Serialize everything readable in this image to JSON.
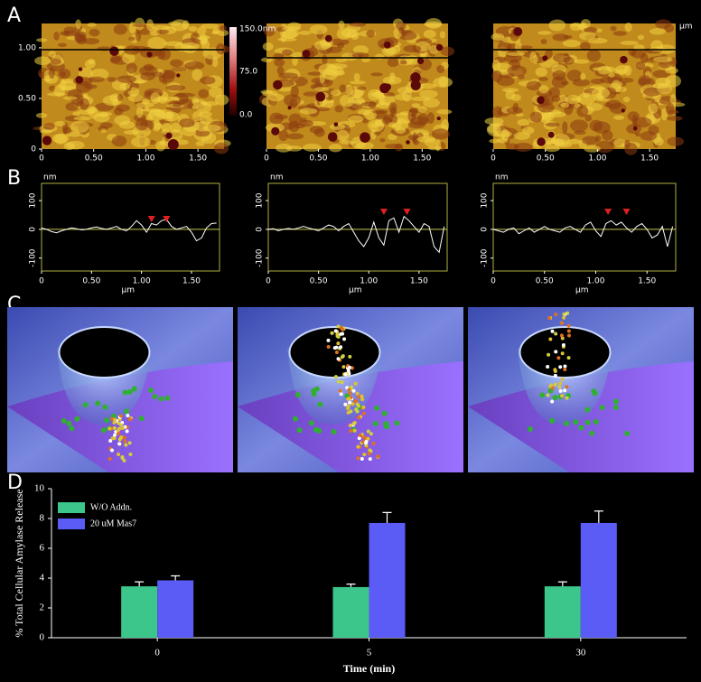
{
  "panel_labels": [
    "A",
    "B",
    "C",
    "D"
  ],
  "afm": {
    "xticks": [
      0,
      {
        "value": 0.5,
        "label": "0.50"
      },
      {
        "value": 1,
        "label": "1.00"
      },
      {
        "value": 1.5,
        "label": "1.50"
      }
    ],
    "yticks": [
      0,
      {
        "value": 0.5,
        "label": "0.50"
      },
      {
        "value": 1,
        "label": "1.00"
      }
    ],
    "xlim": [
      0,
      1.75
    ],
    "ylim": [
      0,
      1.24
    ],
    "colorbar_labels": [
      "150.0nm",
      "75.0",
      "0.0"
    ],
    "unit": "µm"
  },
  "chart_data": [
    {
      "type": "line",
      "color": "#ffffff",
      "zero_line_color": "#c8c850",
      "xlabel": "µm",
      "ylabel": "nm",
      "xlim": [
        0,
        1.78
      ],
      "ylim": [
        -145,
        160
      ],
      "xticks": [
        0,
        {
          "value": 0.5,
          "label": "0.50"
        },
        {
          "value": 1,
          "label": "1.00"
        },
        {
          "value": 1.5,
          "label": "1.50"
        }
      ],
      "yticks": [
        100,
        0,
        -100
      ],
      "x": [
        0,
        0.05,
        0.1,
        0.15,
        0.2,
        0.25,
        0.3,
        0.35,
        0.4,
        0.45,
        0.5,
        0.55,
        0.6,
        0.65,
        0.7,
        0.75,
        0.8,
        0.85,
        0.9,
        0.95,
        1,
        1.05,
        1.1,
        1.15,
        1.2,
        1.25,
        1.3,
        1.35,
        1.4,
        1.45,
        1.5,
        1.55,
        1.6,
        1.65,
        1.7,
        1.75
      ],
      "values": [
        5,
        0,
        -8,
        -12,
        -5,
        0,
        5,
        2,
        -2,
        0,
        5,
        8,
        3,
        0,
        5,
        10,
        0,
        -5,
        10,
        30,
        15,
        -10,
        20,
        15,
        30,
        35,
        10,
        0,
        5,
        10,
        -10,
        -40,
        -30,
        5,
        20,
        22
      ]
    },
    {
      "type": "line",
      "color": "#ffffff",
      "zero_line_color": "#c8c850",
      "xlabel": "µm",
      "ylabel": "nm",
      "xlim": [
        0,
        1.78
      ],
      "ylim": [
        -145,
        160
      ],
      "xticks": [
        0,
        {
          "value": 0.5,
          "label": "0.50"
        },
        {
          "value": 1,
          "label": "1.00"
        },
        {
          "value": 1.5,
          "label": "1.50"
        }
      ],
      "yticks": [
        100,
        0,
        -100
      ],
      "x": [
        0,
        0.05,
        0.1,
        0.15,
        0.2,
        0.25,
        0.3,
        0.35,
        0.4,
        0.45,
        0.5,
        0.55,
        0.6,
        0.65,
        0.7,
        0.75,
        0.8,
        0.85,
        0.9,
        0.95,
        1,
        1.05,
        1.1,
        1.15,
        1.2,
        1.25,
        1.3,
        1.35,
        1.4,
        1.45,
        1.5,
        1.55,
        1.6,
        1.65,
        1.7,
        1.75
      ],
      "values": [
        0,
        2,
        -5,
        0,
        3,
        0,
        5,
        10,
        5,
        0,
        -5,
        5,
        15,
        10,
        -5,
        10,
        20,
        -10,
        -40,
        -60,
        -30,
        25,
        -30,
        -55,
        30,
        40,
        -10,
        45,
        30,
        10,
        -10,
        20,
        10,
        -60,
        -80,
        10
      ]
    },
    {
      "type": "line",
      "color": "#ffffff",
      "zero_line_color": "#c8c850",
      "xlabel": "µm",
      "ylabel": "nm",
      "xlim": [
        0,
        1.78
      ],
      "ylim": [
        -145,
        160
      ],
      "xticks": [
        0,
        {
          "value": 0.5,
          "label": "0.50"
        },
        {
          "value": 1,
          "label": "1.00"
        },
        {
          "value": 1.5,
          "label": "1.50"
        }
      ],
      "yticks": [
        100,
        0,
        -100
      ],
      "x": [
        0,
        0.05,
        0.1,
        0.15,
        0.2,
        0.25,
        0.3,
        0.35,
        0.4,
        0.45,
        0.5,
        0.55,
        0.6,
        0.65,
        0.7,
        0.75,
        0.8,
        0.85,
        0.9,
        0.95,
        1,
        1.05,
        1.1,
        1.15,
        1.2,
        1.25,
        1.3,
        1.35,
        1.4,
        1.45,
        1.5,
        1.55,
        1.6,
        1.65,
        1.7,
        1.75
      ],
      "values": [
        0,
        -5,
        -10,
        0,
        5,
        -15,
        -5,
        5,
        -10,
        0,
        10,
        0,
        -5,
        -10,
        5,
        10,
        0,
        -10,
        15,
        25,
        -5,
        -25,
        20,
        30,
        15,
        25,
        5,
        -10,
        10,
        20,
        0,
        -30,
        -20,
        10,
        -60,
        10
      ]
    },
    {
      "type": "bar",
      "xlabel": "Time (min)",
      "ylabel": "% Total Cellular Amylase Release",
      "categories": [
        "0",
        "5",
        "30"
      ],
      "ylim": [
        0,
        10
      ],
      "yticks": [
        0,
        2,
        4,
        6,
        8,
        10
      ],
      "legend": "upper left",
      "series": [
        {
          "name": "W/O Addn.",
          "color": "#3cc68c",
          "values": [
            3.45,
            3.4,
            3.45
          ],
          "errors": [
            0.3,
            0.2,
            0.3
          ]
        },
        {
          "name": "20 uM Mas7",
          "color": "#5a5cf5",
          "values": [
            3.85,
            7.7,
            7.7
          ],
          "errors": [
            0.3,
            0.7,
            0.8
          ]
        }
      ]
    }
  ]
}
